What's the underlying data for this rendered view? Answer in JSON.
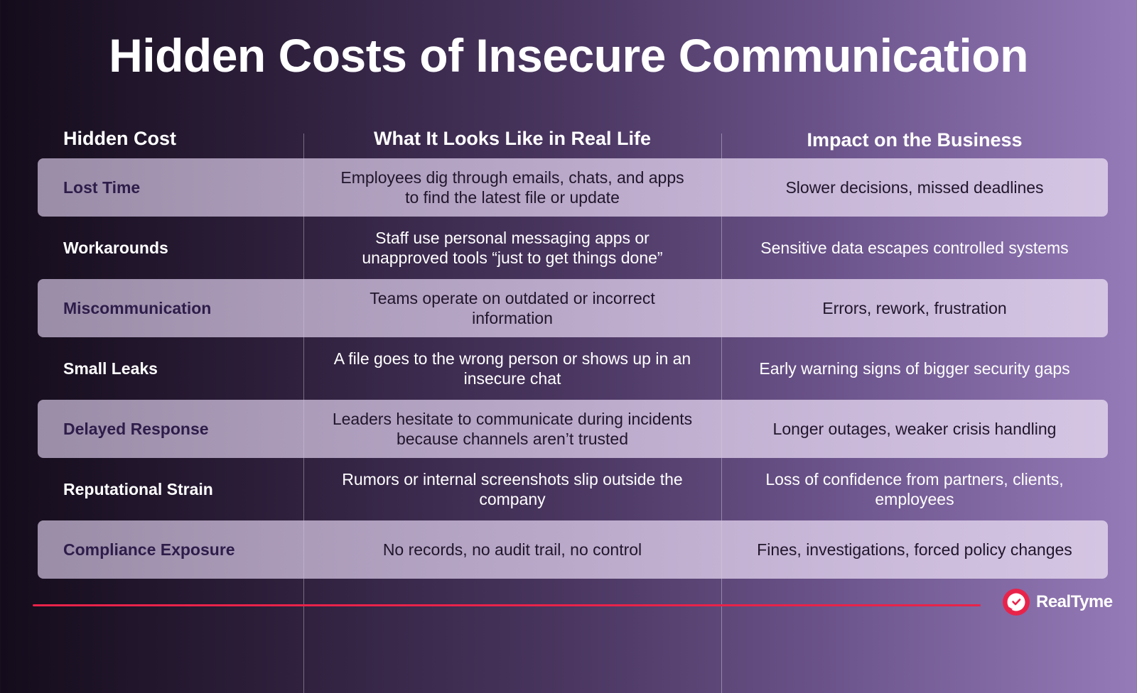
{
  "title": "Hidden Costs of Insecure Communication",
  "table": {
    "headers": [
      "Hidden Cost",
      "What It Looks Like in Real Life",
      "Impact on the Business"
    ],
    "rows": [
      {
        "cost": "Lost Time",
        "real_life": "Employees dig through emails, chats, and apps to find the latest file or update",
        "impact": "Slower decisions, missed deadlines",
        "shaded": true
      },
      {
        "cost": "Workarounds",
        "real_life": "Staff use personal messaging apps or unapproved tools “just to get things done”",
        "impact": "Sensitive data escapes controlled systems",
        "shaded": false
      },
      {
        "cost": "Miscommunication",
        "real_life": "Teams operate on outdated or incorrect information",
        "impact": "Errors, rework, frustration",
        "shaded": true
      },
      {
        "cost": "Small Leaks",
        "real_life": "A file goes to the wrong person or shows up in an insecure chat",
        "impact": "Early warning signs of bigger security gaps",
        "shaded": false
      },
      {
        "cost": "Delayed Response",
        "real_life": "Leaders hesitate to communicate during incidents because channels aren’t trusted",
        "impact": "Longer outages, weaker crisis handling",
        "shaded": true
      },
      {
        "cost": "Reputational Strain",
        "real_life": "Rumors or internal screenshots slip outside the company",
        "impact": "Loss of confidence from partners, clients, employees",
        "shaded": false
      },
      {
        "cost": "Compliance Exposure",
        "real_life": "No records, no audit trail, no control",
        "impact": "Fines, investigations, forced policy changes",
        "shaded": true
      }
    ]
  },
  "footer": {
    "brand": "RealTyme",
    "accent_color": "#e8234a",
    "logo_icon": "chat-bubble-check-icon"
  }
}
